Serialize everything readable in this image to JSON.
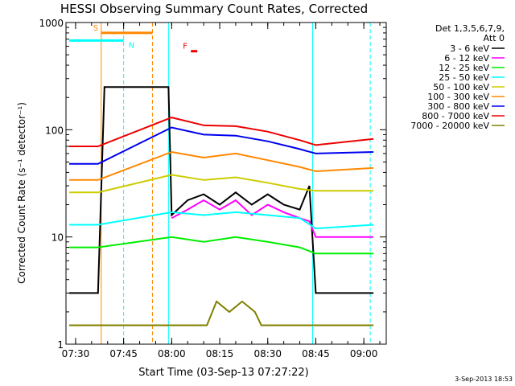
{
  "chart_data": {
    "type": "line",
    "title": "HESSI Observing Summary Count Rates, Corrected",
    "xlabel": "Start Time (03-Sep-13 07:27:22)",
    "ylabel": "Corrected Count Rate (s⁻¹ detector⁻¹)",
    "timestamp": "3-Sep-2013 18:53",
    "y_scale": "log",
    "ylim": [
      1,
      1000
    ],
    "xlim": [
      "07:27",
      "09:07"
    ],
    "x_ticks": [
      "07:30",
      "07:45",
      "08:00",
      "08:15",
      "08:30",
      "08:45",
      "09:00"
    ],
    "y_ticks": [
      "1",
      "10",
      "100",
      "1000"
    ],
    "legend_header": [
      "Det 1,3,5,6,7,9,",
      "Att 0"
    ],
    "legend_position": "top-right",
    "series": [
      {
        "name": "3 - 6 keV",
        "color": "#000000",
        "x": [
          "07:28",
          "07:37",
          "07:39",
          "07:59",
          "08:00",
          "08:05",
          "08:10",
          "08:15",
          "08:20",
          "08:25",
          "08:30",
          "08:35",
          "08:40",
          "08:43",
          "08:45",
          "09:03"
        ],
        "y": [
          3,
          3,
          250,
          250,
          16,
          22,
          25,
          20,
          26,
          20,
          25,
          20,
          18,
          30,
          3,
          3
        ]
      },
      {
        "name": "6 - 12 keV",
        "color": "#ff00ff",
        "x": [
          "08:00",
          "08:05",
          "08:10",
          "08:15",
          "08:20",
          "08:25",
          "08:30",
          "08:35",
          "08:40",
          "08:43",
          "08:45",
          "09:03"
        ],
        "y": [
          15,
          18,
          22,
          18,
          22,
          16,
          20,
          17,
          15,
          14,
          10,
          10
        ]
      },
      {
        "name": "12 - 25 keV",
        "color": "#00ee00",
        "x": [
          "07:28",
          "07:37",
          "08:00",
          "08:10",
          "08:20",
          "08:30",
          "08:40",
          "08:45",
          "09:03"
        ],
        "y": [
          8,
          8,
          10,
          9,
          10,
          9,
          8,
          7,
          7
        ]
      },
      {
        "name": "25 - 50 keV",
        "color": "#00ffff",
        "x": [
          "07:28",
          "07:37",
          "08:00",
          "08:10",
          "08:20",
          "08:30",
          "08:40",
          "08:45",
          "09:03"
        ],
        "y": [
          13,
          13,
          17,
          16,
          17,
          16,
          15,
          12,
          13
        ]
      },
      {
        "name": "50 - 100 keV",
        "color": "#cccc00",
        "x": [
          "07:28",
          "07:37",
          "08:00",
          "08:10",
          "08:20",
          "08:30",
          "08:40",
          "08:45",
          "09:03"
        ],
        "y": [
          26,
          26,
          38,
          34,
          36,
          32,
          28,
          27,
          27
        ]
      },
      {
        "name": "100 - 300 keV",
        "color": "#ff8800",
        "x": [
          "07:28",
          "07:37",
          "08:00",
          "08:10",
          "08:20",
          "08:30",
          "08:40",
          "08:45",
          "09:03"
        ],
        "y": [
          34,
          34,
          62,
          55,
          60,
          52,
          45,
          41,
          44
        ]
      },
      {
        "name": "300 - 800 keV",
        "color": "#0000ee",
        "x": [
          "07:28",
          "07:37",
          "08:00",
          "08:10",
          "08:20",
          "08:30",
          "08:40",
          "08:45",
          "09:03"
        ],
        "y": [
          48,
          48,
          105,
          90,
          88,
          78,
          66,
          60,
          62
        ]
      },
      {
        "name": "800 - 7000 keV",
        "color": "#ee0000",
        "x": [
          "07:28",
          "07:37",
          "08:00",
          "08:10",
          "08:20",
          "08:30",
          "08:40",
          "08:45",
          "09:03"
        ],
        "y": [
          70,
          70,
          130,
          110,
          108,
          96,
          80,
          72,
          82
        ]
      },
      {
        "name": "7000 - 20000 keV",
        "color": "#808000",
        "x": [
          "07:28",
          "07:37",
          "08:11",
          "08:14",
          "08:18",
          "08:22",
          "08:26",
          "08:28",
          "08:45",
          "09:03"
        ],
        "y": [
          1.5,
          1.5,
          1.5,
          2.5,
          2.0,
          2.5,
          2.0,
          1.5,
          1.5,
          1.5
        ]
      }
    ],
    "annotations": [
      {
        "label": "S",
        "color": "#ff8800",
        "x_start": "07:38",
        "x_end": "07:54",
        "y": 800
      },
      {
        "label": "N",
        "color": "#00ffff",
        "x_start": "07:28",
        "x_end": "07:45",
        "y": 680
      },
      {
        "label": "F",
        "color": "#ee0000",
        "x_start": "08:06",
        "x_end": "08:08",
        "y": 540
      }
    ],
    "vertical_markers": [
      {
        "time": "07:38",
        "color": "#ff8800",
        "style": "solid"
      },
      {
        "time": "07:54",
        "color": "#ff8800",
        "style": "dashed"
      },
      {
        "time": "07:45",
        "color": "#00ffff",
        "style": "dashed"
      },
      {
        "time": "07:59",
        "color": "#00ffff",
        "style": "solid"
      },
      {
        "time": "08:44",
        "color": "#00ffff",
        "style": "solid"
      },
      {
        "time": "09:02",
        "color": "#00ffff",
        "style": "dashed"
      }
    ]
  }
}
